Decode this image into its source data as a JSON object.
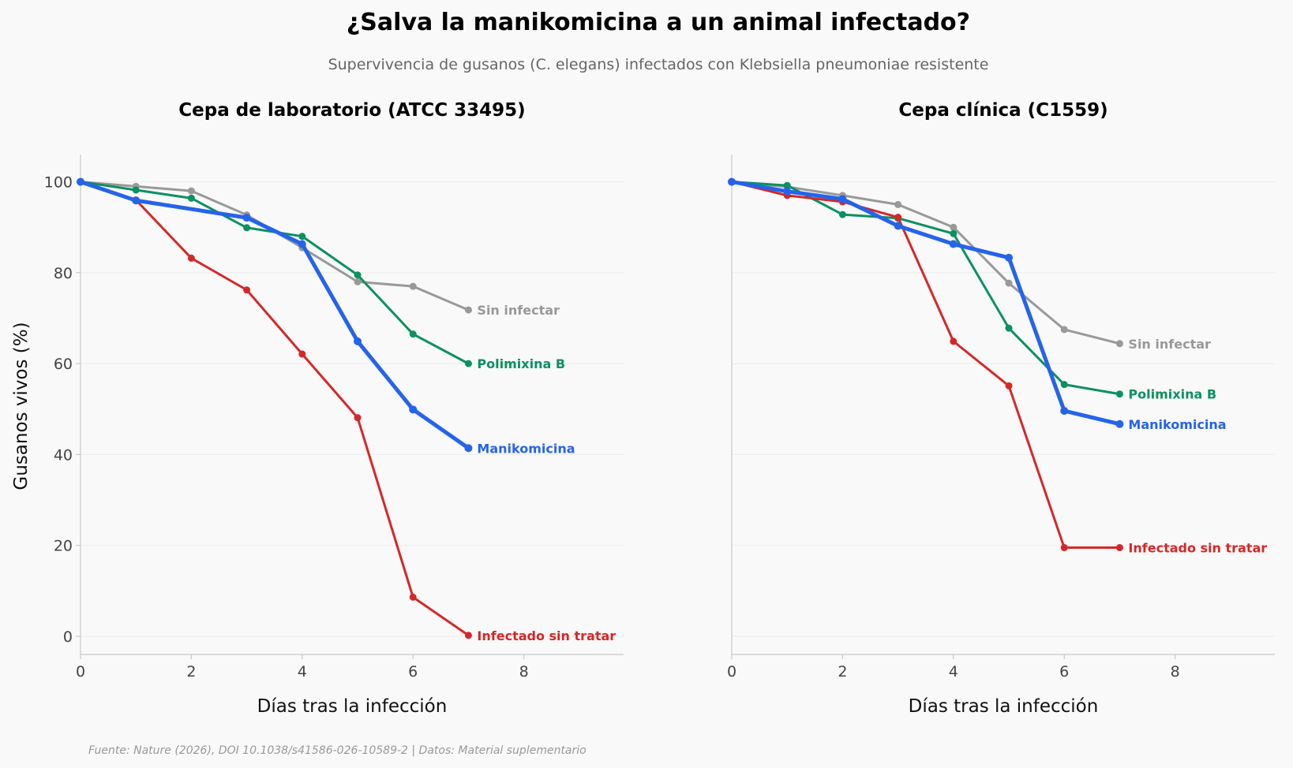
{
  "title": "¿Salva la manikomicina a un animal infectado?",
  "subtitle": "Supervivencia de gusanos (C. elegans) infectados con Klebsiella pneumoniae resistente",
  "source": "Fuente: Nature (2026), DOI 10.1038/s41586-026-10589-2 | Datos: Material suplementario",
  "ylabel": "Gusanos vivos (%)",
  "chart_data": [
    {
      "type": "line",
      "title": "Cepa de laboratorio (ATCC 33495)",
      "xlabel": "Días tras la infección",
      "ylabel": "Gusanos vivos (%)",
      "xlim": [
        0,
        9.8
      ],
      "ylim": [
        -4,
        106
      ],
      "xticks": [
        0,
        2,
        4,
        6,
        8
      ],
      "yticks": [
        0,
        20,
        40,
        60,
        80,
        100
      ],
      "grid": "horizontal",
      "x": [
        0,
        1,
        2,
        3,
        4,
        5,
        6,
        7
      ],
      "series": [
        {
          "name": "Sin infectar",
          "color": "#999999",
          "width": 3,
          "values": [
            100,
            99,
            98,
            92.7,
            85.5,
            78,
            77,
            71.8
          ]
        },
        {
          "name": "Polimixina B",
          "color": "#0a9160",
          "width": 3,
          "values": [
            100,
            98.2,
            96.4,
            89.9,
            88,
            79.5,
            66.5,
            60
          ]
        },
        {
          "name": "Infectado sin tratar",
          "color": "#d62728",
          "width": 3,
          "values": [
            100,
            96,
            83.2,
            76.2,
            62.1,
            48.1,
            8.6,
            0.2
          ]
        },
        {
          "name": "Manikomicina",
          "color": "#2563eb",
          "width": 5,
          "values": [
            100,
            95.9,
            null,
            92.1,
            86.3,
            64.9,
            49.9,
            41.4
          ]
        }
      ]
    },
    {
      "type": "line",
      "title": "Cepa clínica (C1559)",
      "xlabel": "Días tras la infección",
      "ylabel": "",
      "xlim": [
        0,
        9.8
      ],
      "ylim": [
        -4,
        106
      ],
      "xticks": [
        0,
        2,
        4,
        6,
        8
      ],
      "yticks": [],
      "grid": "horizontal",
      "x": [
        0,
        1,
        2,
        3,
        4,
        5,
        6,
        7
      ],
      "series": [
        {
          "name": "Sin infectar",
          "color": "#999999",
          "width": 3,
          "values": [
            100,
            98.9,
            97,
            95,
            90,
            77.7,
            67.5,
            64.4
          ]
        },
        {
          "name": "Polimixina B",
          "color": "#0a9160",
          "width": 3,
          "values": [
            100,
            99.2,
            92.8,
            92,
            88.6,
            67.8,
            55.4,
            53.3
          ]
        },
        {
          "name": "Infectado sin tratar",
          "color": "#d62728",
          "width": 3,
          "values": [
            100,
            97,
            95.6,
            92.2,
            64.9,
            55.1,
            19.5,
            19.5
          ]
        },
        {
          "name": "Manikomicina",
          "color": "#2563eb",
          "width": 5,
          "values": [
            100,
            97.9,
            96.2,
            90.3,
            86.3,
            83.3,
            49.6,
            46.7
          ]
        }
      ]
    }
  ]
}
